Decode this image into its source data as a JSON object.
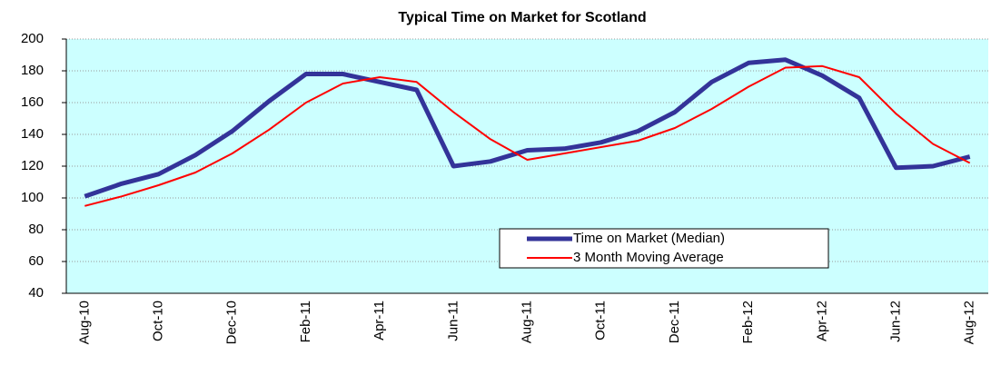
{
  "chart_data": {
    "type": "line",
    "title": "Typical Time on Market for Scotland",
    "categories": [
      "Aug-10",
      null,
      "Oct-10",
      null,
      "Dec-10",
      null,
      "Feb-11",
      null,
      "Apr-11",
      null,
      "Jun-11",
      null,
      "Aug-11",
      null,
      "Oct-11",
      null,
      "Dec-11",
      null,
      "Feb-12",
      null,
      "Apr-12",
      null,
      "Jun-12",
      null,
      "Aug-12"
    ],
    "series": [
      {
        "name": "Time on Market (Median)",
        "color": "#333399",
        "values": [
          101,
          109,
          115,
          127,
          142,
          161,
          178,
          178,
          173,
          168,
          120,
          123,
          130,
          131,
          135,
          142,
          154,
          173,
          185,
          187,
          177,
          163,
          119,
          120,
          126
        ]
      },
      {
        "name": "3 Month Moving Average",
        "color": "#ff0000",
        "values": [
          95,
          101,
          108,
          116,
          128,
          143,
          160,
          172,
          176,
          173,
          154,
          137,
          124,
          128,
          132,
          136,
          144,
          156,
          170,
          182,
          183,
          176,
          153,
          134,
          122
        ]
      }
    ],
    "ylim": [
      40,
      200
    ],
    "yticks": [
      40,
      60,
      80,
      100,
      120,
      140,
      160,
      180,
      200
    ],
    "grid": true,
    "legend": "lower right"
  }
}
